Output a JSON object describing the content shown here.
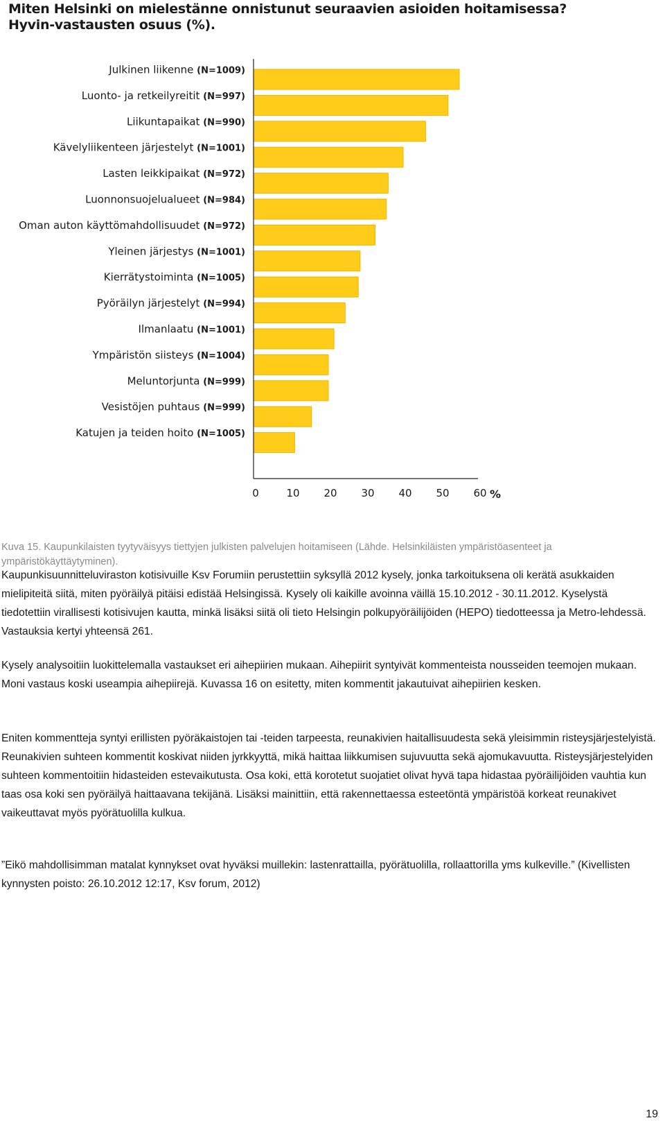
{
  "title": {
    "line1": "Miten Helsinki on mielestänne onnistunut seuraavien asioiden hoitamisessa?",
    "line2": "Hyvin-vastausten osuus (%)."
  },
  "chart_data": {
    "type": "bar",
    "orientation": "horizontal",
    "title": "Miten Helsinki on mielestänne onnistunut seuraavien asioiden hoitamisessa? Hyvin-vastausten osuus (%).",
    "categories": [
      {
        "label": "Julkinen liikenne",
        "n": "(N=1009)"
      },
      {
        "label": "Luonto- ja retkeilyreitit",
        "n": "(N=997)"
      },
      {
        "label": "Liikuntapaikat",
        "n": "(N=990)"
      },
      {
        "label": "Kävelyliikenteen järjestelyt",
        "n": "(N=1001)"
      },
      {
        "label": "Lasten leikkipaikat",
        "n": "(N=972)"
      },
      {
        "label": "Luonnonsuojelualueet",
        "n": "(N=984)"
      },
      {
        "label": "Oman auton käyttömahdollisuudet",
        "n": "(N=972)"
      },
      {
        "label": "Yleinen järjestys",
        "n": "(N=1001)"
      },
      {
        "label": "Kierrätystoiminta",
        "n": "(N=1005)"
      },
      {
        "label": "Pyöräilyn järjestelyt",
        "n": "(N=994)"
      },
      {
        "label": "Ilmanlaatu",
        "n": "(N=1001)"
      },
      {
        "label": "Ympäristön siisteys",
        "n": "(N=1004)"
      },
      {
        "label": "Meluntorjunta",
        "n": "(N=999)"
      },
      {
        "label": "Vesistöjen puhtaus",
        "n": "(N=999)"
      },
      {
        "label": "Katujen ja teiden hoito",
        "n": "(N=1005)"
      }
    ],
    "values": [
      55,
      52,
      46,
      40,
      36,
      35.5,
      32.5,
      28.5,
      28,
      24.5,
      21.5,
      20,
      20,
      15.5,
      11
    ],
    "xlim": [
      0,
      60
    ],
    "xticks": [
      "0",
      "10",
      "20",
      "30",
      "40",
      "50",
      "60"
    ],
    "xunit": "%",
    "bar_color": "#ffcc1a",
    "bar_edge_color": "#f0b400",
    "grid": false
  },
  "caption": "Kuva 15. Kaupunkilaisten tyytyväisyys tiettyjen julkisten palvelujen hoitamiseen (Lähde. Helsinkiläisten ympäristöasenteet ja ympäristökäyttäytyminen).",
  "paragraphs": [
    "Kaupunkisuunnitteluviraston kotisivuille Ksv Forumiin perustettiin syksyllä 2012 kysely, jonka tarkoituksena oli kerätä asukkaiden mielipiteitä siitä, miten pyöräilyä pitäisi edistää Helsingissä. Kysely oli kaikille avoinna väillä 15.10.2012 - 30.11.2012. Kyselystä tiedotettiin virallisesti kotisivujen kautta, minkä lisäksi siitä oli tieto Helsingin polkupyöräilijöiden (HEPO) tiedotteessa ja Metro-lehdessä. Vastauksia kertyi yhteensä 261.",
    "Kysely analysoitiin luokittelemalla vastaukset eri aihepiirien mukaan. Aihepiirit syntyivät kommenteista nousseiden teemojen mukaan. Moni vastaus koski useampia aihepiirejä. Kuvassa 16 on esitetty, miten kommentit jakautuivat aihepiirien kesken.",
    "Eniten kommentteja syntyi erillisten pyöräkaistojen tai -teiden tarpeesta, reunakivien haitallisuudesta sekä yleisimmin risteysjärjestelyistä. Reunakivien suhteen kommentit koskivat niiden jyrkkyyttä, mikä haittaa liikkumisen sujuvuutta sekä ajomukavuutta. Risteysjärjestelyiden suhteen kommentoitiin hidasteiden estevaikutusta. Osa koki, että korotetut suojatiet olivat hyvä tapa hidastaa pyöräilijöiden vauhtia kun taas osa koki sen pyöräilyä haittaavana tekijänä. Lisäksi mainittiin, että rakennettaessa esteetöntä ympäristöä korkeat reunakivet vaikeuttavat myös pyörätuolilla kulkua.",
    "”Eikö mahdollisimman matalat kynnykset ovat hyväksi muillekin: lastenrattailla, pyörätuolilla, rollaattorilla yms kulkeville.” (Kivellisten kynnysten poisto: 26.10.2012 12:17, Ksv forum, 2012)"
  ],
  "page_number": "19"
}
